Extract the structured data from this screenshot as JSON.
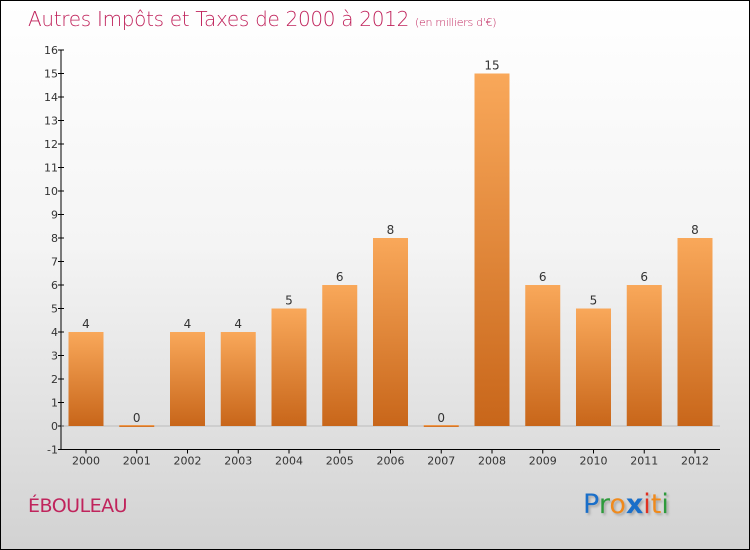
{
  "title": "Autres Impôts et Taxes de 2000 à 2012",
  "unit": "(en milliers d'€)",
  "commune": "ÉBOULEAU",
  "logo": {
    "text": "Proxiti",
    "letters": [
      "P",
      "r",
      "o",
      "x",
      "i",
      "t",
      "i"
    ],
    "colors": [
      "#1a6fc9",
      "#2e9a3c",
      "#f08a1c",
      "#1a6fc9",
      "#e03020",
      "#f08a1c",
      "#2e9a3c"
    ]
  },
  "chart_data": {
    "type": "bar",
    "title": "Autres Impôts et Taxes de 2000 à 2012",
    "categories": [
      "2000",
      "2001",
      "2002",
      "2003",
      "2004",
      "2005",
      "2006",
      "2007",
      "2008",
      "2009",
      "2010",
      "2011",
      "2012"
    ],
    "values": [
      4,
      0,
      4,
      4,
      5,
      6,
      8,
      0,
      15,
      6,
      5,
      6,
      8
    ],
    "ylim": [
      -1,
      16
    ],
    "yticks": [
      -1,
      0,
      1,
      2,
      3,
      4,
      5,
      6,
      7,
      8,
      9,
      10,
      11,
      12,
      13,
      14,
      15,
      16
    ],
    "bar_color_top": "#f9a85a",
    "bar_color_bottom": "#c8661a"
  }
}
